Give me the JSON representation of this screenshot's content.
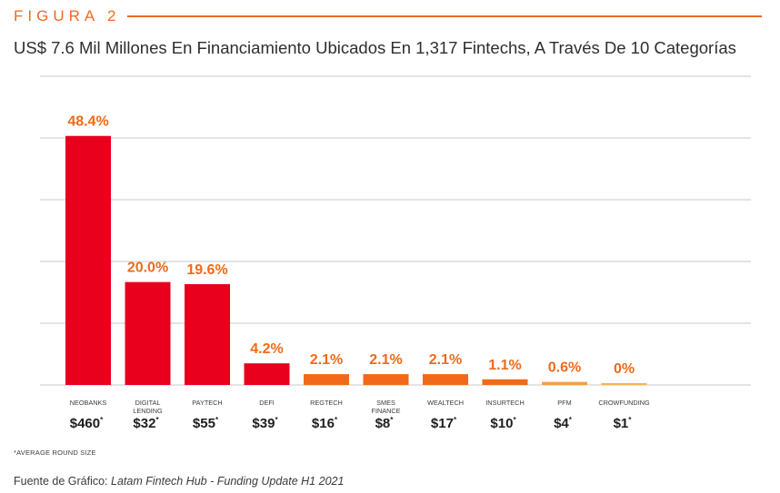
{
  "header": {
    "figure_label": "FIGURA 2",
    "title": "US$ 7.6 Mil Millones En Financiamiento Ubicados En 1,317 Fintechs, A Través De 10 Categorías"
  },
  "chart_data": {
    "type": "bar",
    "title": "US$ 7.6 Mil Millones En Financiamiento Ubicados En 1,317 Fintechs, A Través De 10 Categorías",
    "xlabel": "",
    "ylabel": "",
    "ylim": [
      0,
      60
    ],
    "grid": true,
    "categories": [
      [
        "NEOBANKS"
      ],
      [
        "DIGITAL",
        "LENDING"
      ],
      [
        "PAYTECH"
      ],
      [
        "DEFI"
      ],
      [
        "REGTECH"
      ],
      [
        "SMES",
        "FINANCE"
      ],
      [
        "WEALTECH"
      ],
      [
        "INSURTECH"
      ],
      [
        "PFM"
      ],
      [
        "CROWFUNDING"
      ]
    ],
    "values": [
      48.4,
      20.0,
      19.6,
      4.2,
      2.1,
      2.1,
      2.1,
      1.1,
      0.6,
      0
    ],
    "value_labels": [
      "48.4%",
      "20.0%",
      "19.6%",
      "4.2%",
      "2.1%",
      "2.1%",
      "2.1%",
      "1.1%",
      "0.6%",
      "0%"
    ],
    "avg_round_size": [
      "$460",
      "$32",
      "$55",
      "$39",
      "$16",
      "$8",
      "$17",
      "$10",
      "$4",
      "$1"
    ],
    "avg_marker": "*",
    "colors": {
      "bars": [
        "#e8001c",
        "#e8001c",
        "#e8001c",
        "#e8001c",
        "#f06a1a",
        "#f06a1a",
        "#f06a1a",
        "#f06a1a",
        "#f5a040",
        "#f8b050"
      ],
      "value_label": "#f06a1a",
      "accent": "#f06a20",
      "grid": "#c8c8c8"
    }
  },
  "footer": {
    "footnote": "*AVERAGE ROUND SIZE",
    "source_prefix": "Fuente de Gráfico: ",
    "source_text": "Latam Fintech Hub - Funding Update H1 2021"
  }
}
